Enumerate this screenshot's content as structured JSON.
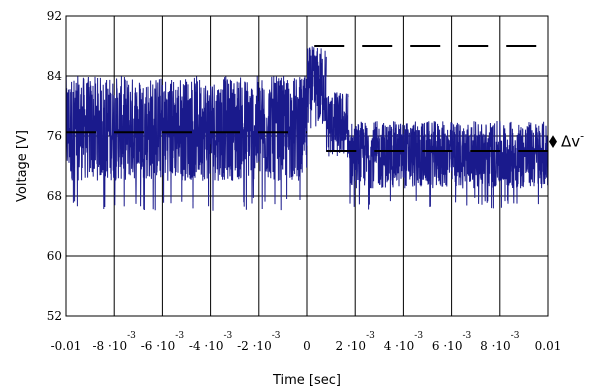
{
  "chart_data": {
    "type": "line",
    "xlabel": "Time [sec]",
    "ylabel": "Voltage [V]",
    "xlim": [
      -0.01,
      0.01
    ],
    "ylim": [
      52,
      92
    ],
    "grid": true,
    "y_ticks": [
      {
        "value": 52,
        "label": "52"
      },
      {
        "value": 60,
        "label": "60"
      },
      {
        "value": 68,
        "label": "68"
      },
      {
        "value": 76,
        "label": "76"
      },
      {
        "value": 84,
        "label": "84"
      },
      {
        "value": 92,
        "label": "92"
      }
    ],
    "x_ticks": [
      {
        "value": -0.01,
        "base": "-0.01",
        "exp": ""
      },
      {
        "value": -0.008,
        "base": "-8 ·10",
        "exp": "-3"
      },
      {
        "value": -0.006,
        "base": "-6 ·10",
        "exp": "-3"
      },
      {
        "value": -0.004,
        "base": "-4 ·10",
        "exp": "-3"
      },
      {
        "value": -0.002,
        "base": "-2 ·10",
        "exp": "-3"
      },
      {
        "value": 0,
        "base": "0",
        "exp": ""
      },
      {
        "value": 0.002,
        "base": "2 ·10",
        "exp": "-3"
      },
      {
        "value": 0.004,
        "base": "4 ·10",
        "exp": "-3"
      },
      {
        "value": 0.006,
        "base": "6 ·10",
        "exp": "-3"
      },
      {
        "value": 0.008,
        "base": "8 ·10",
        "exp": "-3"
      },
      {
        "value": 0.01,
        "base": "0.01",
        "exp": ""
      }
    ],
    "series": [
      {
        "style": "noisy-signal",
        "color": "#1a1a8c",
        "segments": [
          {
            "x_start": -0.01,
            "x_end": 0.0,
            "mean": 76.5,
            "band": [
              70,
              84
            ],
            "outliers_low": [
              66,
              68
            ]
          },
          {
            "x_start": 0.0,
            "x_end": 0.0008,
            "mean": 82,
            "band": [
              77,
              88
            ]
          },
          {
            "x_start": 0.0008,
            "x_end": 0.0017,
            "mean": 77,
            "band": [
              73,
              82
            ]
          },
          {
            "x_start": 0.0017,
            "x_end": 0.01,
            "mean": 74.5,
            "band": [
              69,
              78
            ],
            "outliers_low": [
              66,
              68
            ]
          }
        ]
      },
      {
        "style": "dashed",
        "color": "#000000",
        "segments": [
          {
            "x": [
              -0.01,
              0.0
            ],
            "y": 76.5
          },
          {
            "x": [
              0.0003,
              0.01
            ],
            "y": 88
          },
          {
            "x": [
              0.0008,
              0.01
            ],
            "y": 74
          }
        ]
      }
    ],
    "annotations": [
      {
        "label": "Δv",
        "sup": "-"
      }
    ]
  }
}
